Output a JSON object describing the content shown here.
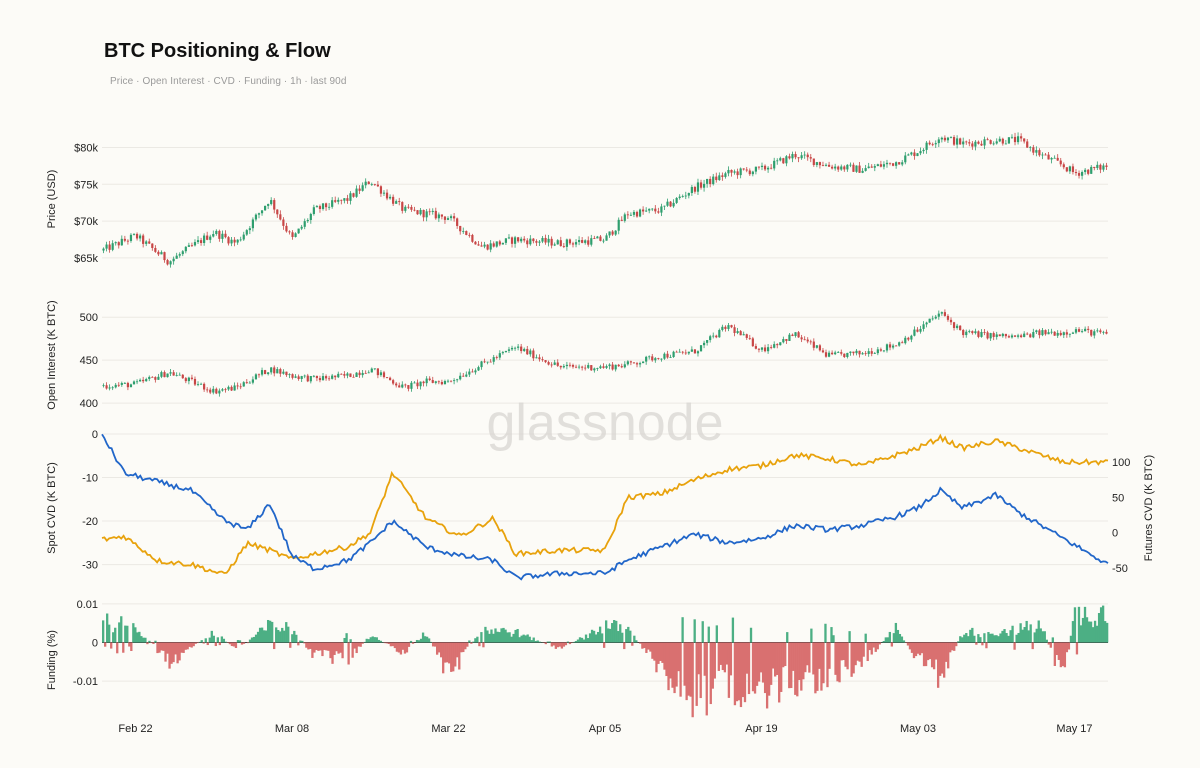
{
  "title": "BTC Positioning & Flow",
  "subtitle": "Price · Open Interest · CVD · Funding   ·   1h · last 90d",
  "watermark": "glassnode",
  "colors": {
    "up": "#2e9e6e",
    "down": "#c84646",
    "spot_cvd": "#2166c9",
    "futures_cvd": "#e8a20c",
    "funding_pos": "#4caf84",
    "funding_neg": "#d97070",
    "grid": "#ebe9e4"
  },
  "chart_data": [
    {
      "type": "line",
      "panel": "price",
      "ylabel": "Price (USD)",
      "yticks": [
        65000,
        70000,
        75000,
        80000
      ],
      "ytick_labels": [
        "$65k",
        "$70k",
        "$75k",
        "$80k"
      ],
      "ylim": [
        62000,
        84000
      ],
      "x": [
        "2025-02-19",
        "2025-02-22",
        "2025-02-25",
        "2025-03-01",
        "2025-03-03",
        "2025-03-06",
        "2025-03-08",
        "2025-03-10",
        "2025-03-13",
        "2025-03-15",
        "2025-03-18",
        "2025-03-20",
        "2025-03-22",
        "2025-03-25",
        "2025-03-28",
        "2025-04-01",
        "2025-04-05",
        "2025-04-07",
        "2025-04-10",
        "2025-04-13",
        "2025-04-16",
        "2025-04-19",
        "2025-04-22",
        "2025-04-25",
        "2025-04-28",
        "2025-05-01",
        "2025-05-03",
        "2025-05-05",
        "2025-05-07",
        "2025-05-10",
        "2025-05-12",
        "2025-05-14",
        "2025-05-16",
        "2025-05-17",
        "2025-05-20"
      ],
      "series": [
        {
          "values": [
            66000,
            68000,
            64500,
            68500,
            67000,
            73000,
            67500,
            71500,
            73000,
            75500,
            71500,
            71000,
            70500,
            66500,
            67500,
            67000,
            67500,
            71000,
            71500,
            74500,
            76500,
            77000,
            79000,
            77500,
            77000,
            78000,
            79500,
            81500,
            80500,
            81000,
            81000,
            79000,
            77500,
            76500,
            77500
          ]
        }
      ]
    },
    {
      "type": "line",
      "panel": "open_interest",
      "ylabel": "Open Interest (K BTC)",
      "yticks": [
        400,
        450,
        500
      ],
      "ylim": [
        392,
        520
      ],
      "x": [
        "2025-02-19",
        "2025-02-22",
        "2025-02-25",
        "2025-03-01",
        "2025-03-03",
        "2025-03-06",
        "2025-03-08",
        "2025-03-10",
        "2025-03-13",
        "2025-03-15",
        "2025-03-18",
        "2025-03-20",
        "2025-03-22",
        "2025-03-25",
        "2025-03-28",
        "2025-04-01",
        "2025-04-05",
        "2025-04-07",
        "2025-04-10",
        "2025-04-13",
        "2025-04-16",
        "2025-04-19",
        "2025-04-22",
        "2025-04-25",
        "2025-04-28",
        "2025-05-01",
        "2025-05-03",
        "2025-05-05",
        "2025-05-07",
        "2025-05-10",
        "2025-05-12",
        "2025-05-14",
        "2025-05-16",
        "2025-05-17",
        "2025-05-20"
      ],
      "series": [
        {
          "values": [
            420,
            422,
            436,
            414,
            418,
            440,
            432,
            428,
            432,
            440,
            418,
            425,
            425,
            445,
            465,
            442,
            442,
            445,
            455,
            460,
            490,
            462,
            480,
            455,
            458,
            468,
            485,
            505,
            482,
            478,
            477,
            482,
            482,
            485,
            480
          ]
        }
      ]
    },
    {
      "type": "line",
      "panel": "cvd",
      "ylabel": "Spot CVD (K BTC)",
      "y2label": "Futures CVD (K BTC)",
      "yticks": [
        -30,
        -20,
        -10,
        0
      ],
      "ylim": [
        -34,
        0
      ],
      "y2ticks": [
        -50,
        0,
        50,
        100
      ],
      "y2lim": [
        -70,
        140
      ],
      "x": [
        "2025-02-19",
        "2025-02-21",
        "2025-02-24",
        "2025-02-27",
        "2025-03-02",
        "2025-03-04",
        "2025-03-06",
        "2025-03-08",
        "2025-03-10",
        "2025-03-13",
        "2025-03-15",
        "2025-03-17",
        "2025-03-20",
        "2025-03-23",
        "2025-03-26",
        "2025-03-28",
        "2025-04-01",
        "2025-04-05",
        "2025-04-07",
        "2025-04-10",
        "2025-04-13",
        "2025-04-16",
        "2025-04-19",
        "2025-04-22",
        "2025-04-25",
        "2025-04-28",
        "2025-05-01",
        "2025-05-03",
        "2025-05-05",
        "2025-05-07",
        "2025-05-10",
        "2025-05-12",
        "2025-05-14",
        "2025-05-16",
        "2025-05-20"
      ],
      "series": [
        {
          "name": "Spot CVD",
          "values": [
            0,
            -9,
            -11,
            -13,
            -20,
            -22,
            -16,
            -28,
            -31,
            -29,
            -25,
            -20,
            -26,
            -28,
            -29,
            -33,
            -32,
            -32,
            -29,
            -26,
            -23,
            -25,
            -24,
            -21,
            -22,
            -21,
            -19,
            -17,
            -13,
            -17,
            -14,
            -18,
            -21,
            -24,
            -30
          ]
        },
        {
          "name": "Futures CVD",
          "values": [
            -10,
            -5,
            -40,
            -45,
            -60,
            -15,
            -25,
            -38,
            -30,
            -20,
            0,
            85,
            20,
            -5,
            20,
            -30,
            -25,
            -25,
            50,
            55,
            75,
            90,
            95,
            110,
            105,
            95,
            110,
            120,
            135,
            120,
            130,
            120,
            110,
            100,
            100
          ]
        }
      ]
    },
    {
      "type": "bar",
      "panel": "funding",
      "ylabel": "Funding (%)",
      "yticks": [
        -0.01,
        0,
        0.01
      ],
      "ytick_labels": [
        "-0.01",
        "0",
        "0.01"
      ],
      "ylim": [
        -0.018,
        0.011
      ],
      "x": [
        "2025-02-19",
        "2025-02-22",
        "2025-02-25",
        "2025-03-01",
        "2025-03-03",
        "2025-03-06",
        "2025-03-08",
        "2025-03-10",
        "2025-03-13",
        "2025-03-15",
        "2025-03-18",
        "2025-03-20",
        "2025-03-22",
        "2025-03-25",
        "2025-03-28",
        "2025-04-01",
        "2025-04-05",
        "2025-04-07",
        "2025-04-10",
        "2025-04-13",
        "2025-04-16",
        "2025-04-19",
        "2025-04-22",
        "2025-04-25",
        "2025-04-28",
        "2025-05-01",
        "2025-05-03",
        "2025-05-05",
        "2025-05-07",
        "2025-05-10",
        "2025-05-12",
        "2025-05-14",
        "2025-05-16",
        "2025-05-17",
        "2025-05-20"
      ],
      "series": [
        {
          "values": [
            0.006,
            0.005,
            -0.006,
            0.003,
            -0.002,
            0.005,
            0.004,
            -0.004,
            -0.005,
            0.002,
            -0.003,
            0.003,
            -0.01,
            0.004,
            0.003,
            -0.002,
            0.005,
            0.004,
            -0.008,
            -0.016,
            -0.012,
            -0.015,
            -0.011,
            -0.01,
            -0.006,
            0.004,
            -0.005,
            -0.01,
            0.003,
            0.003,
            0.004,
            0.005,
            -0.011,
            0.008,
            0.009
          ]
        }
      ]
    }
  ],
  "x_axis": {
    "tick_labels": [
      "Feb 22",
      "Mar 08",
      "Mar 22",
      "Apr 05",
      "Apr 19",
      "May 03",
      "May 17"
    ],
    "tick_dates": [
      "2025-02-22",
      "2025-03-08",
      "2025-03-22",
      "2025-04-05",
      "2025-04-19",
      "2025-05-03",
      "2025-05-17"
    ],
    "range": [
      "2025-02-19",
      "2025-05-20"
    ]
  }
}
